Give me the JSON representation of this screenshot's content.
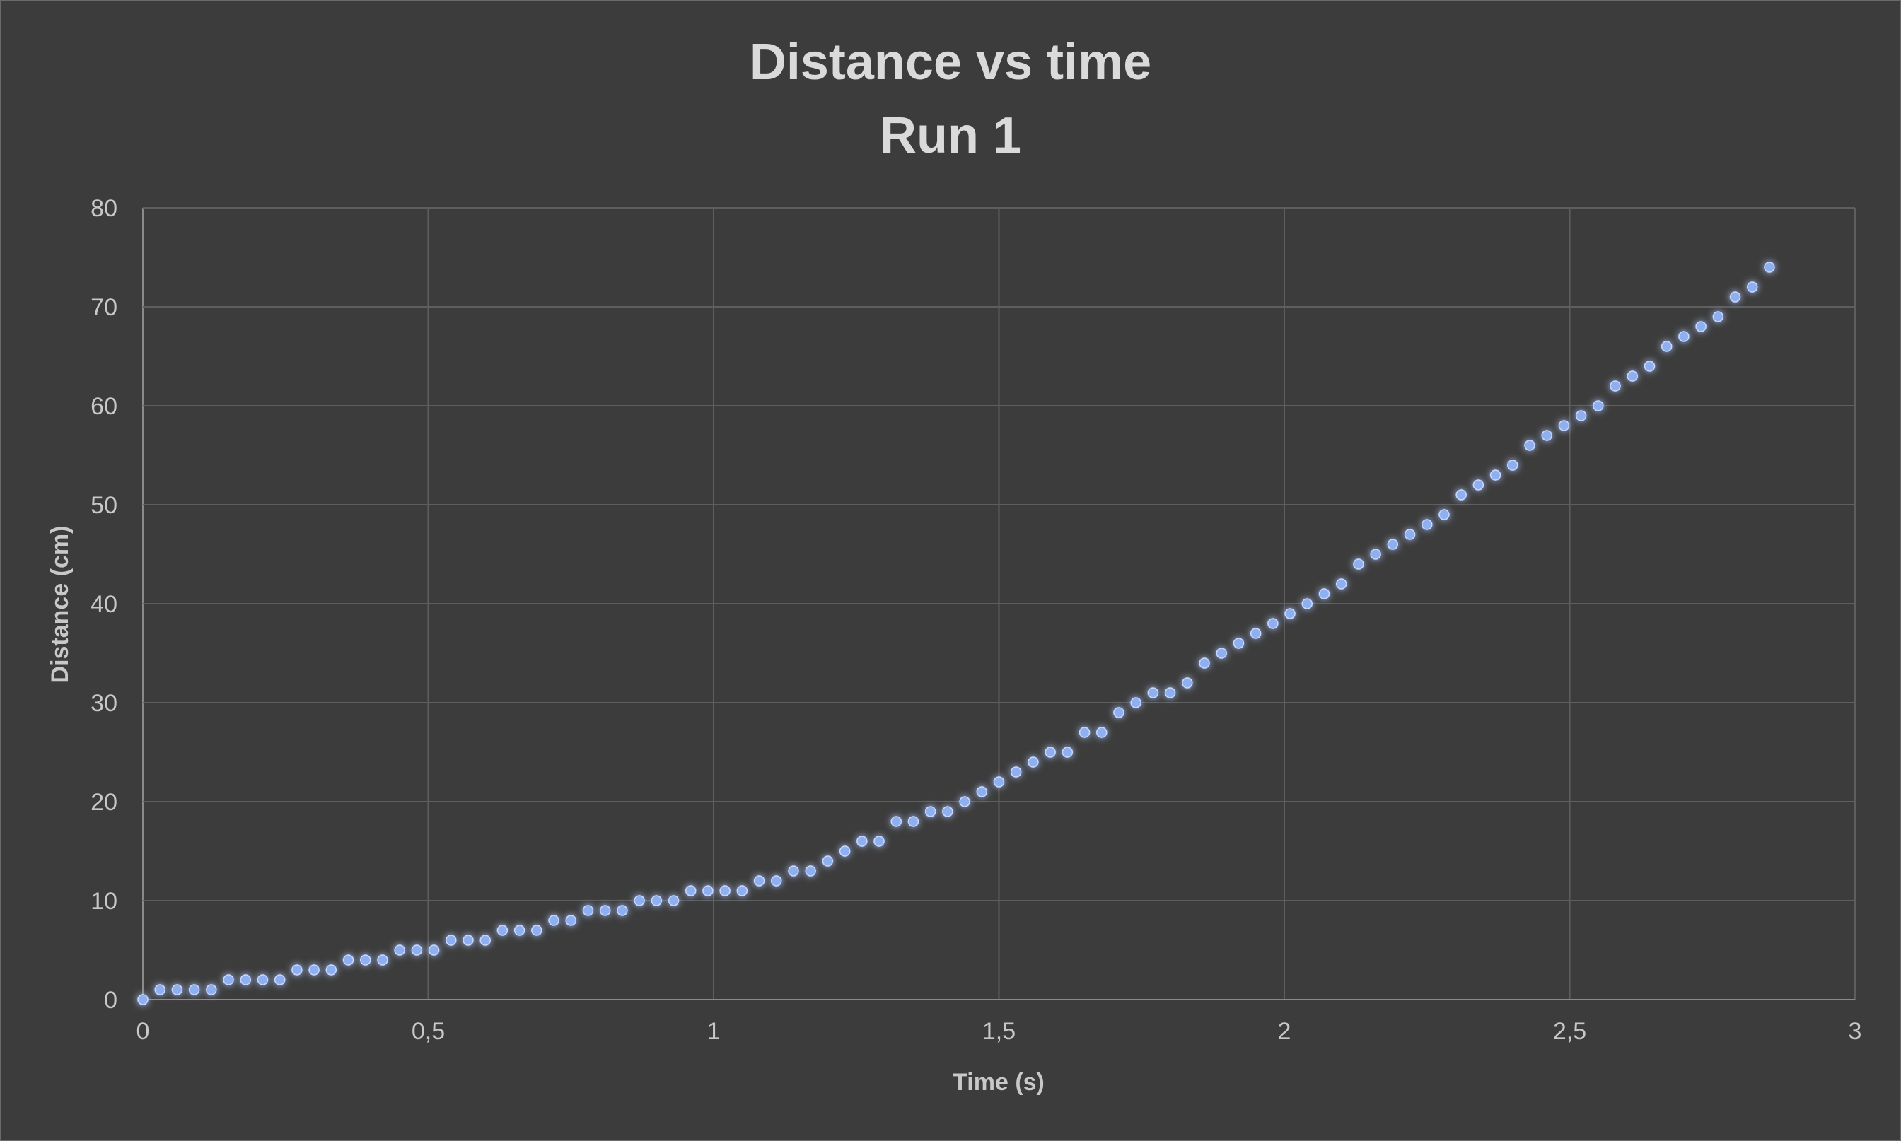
{
  "chart_data": {
    "type": "scatter",
    "title": "Distance vs time",
    "subtitle": "Run 1",
    "xlabel": "Time (s)",
    "ylabel": "Distance (cm)",
    "xlim": [
      0,
      3
    ],
    "ylim": [
      0,
      80
    ],
    "x_ticks": [
      "0",
      "0,5",
      "1",
      "1,5",
      "2",
      "2,5",
      "3"
    ],
    "y_ticks": [
      "0",
      "10",
      "20",
      "30",
      "40",
      "50",
      "60",
      "70",
      "80"
    ],
    "grid": true,
    "legend": "none",
    "marker_color": "#8fb0f0",
    "series": [
      {
        "x": [
          0,
          0.03,
          0.06,
          0.09,
          0.12,
          0.15,
          0.18,
          0.21,
          0.24,
          0.27,
          0.3,
          0.33,
          0.36,
          0.39,
          0.42,
          0.45,
          0.48,
          0.51,
          0.54,
          0.57,
          0.6,
          0.63,
          0.66,
          0.69,
          0.72,
          0.75,
          0.78,
          0.81,
          0.84,
          0.87,
          0.9,
          0.93,
          0.96,
          0.99,
          1.02,
          1.05,
          1.08,
          1.11,
          1.14,
          1.17,
          1.2,
          1.23,
          1.26,
          1.29,
          1.32,
          1.35,
          1.38,
          1.41,
          1.44,
          1.47,
          1.5,
          1.53,
          1.56,
          1.59,
          1.62,
          1.65,
          1.68,
          1.71,
          1.74,
          1.77,
          1.8,
          1.83,
          1.86,
          1.89,
          1.92,
          1.95,
          1.98,
          2.01,
          2.04,
          2.07,
          2.1,
          2.13,
          2.16,
          2.19,
          2.22,
          2.25,
          2.28,
          2.31,
          2.34,
          2.37,
          2.4,
          2.43,
          2.46,
          2.49,
          2.52,
          2.55,
          2.58,
          2.61,
          2.64,
          2.67,
          2.7,
          2.73,
          2.76,
          2.79,
          2.82,
          2.85
        ],
        "y": [
          0,
          1,
          1,
          1,
          1,
          2,
          2,
          2,
          2,
          3,
          3,
          3,
          4,
          4,
          4,
          5,
          5,
          5,
          6,
          6,
          6,
          7,
          7,
          7,
          8,
          8,
          9,
          9,
          9,
          10,
          10,
          10,
          11,
          11,
          11,
          11,
          12,
          12,
          13,
          13,
          14,
          15,
          16,
          16,
          18,
          18,
          19,
          19,
          20,
          21,
          22,
          23,
          24,
          25,
          25,
          27,
          27,
          29,
          30,
          31,
          31,
          32,
          34,
          35,
          36,
          37,
          38,
          39,
          40,
          41,
          42,
          44,
          45,
          46,
          47,
          48,
          49,
          51,
          52,
          53,
          54,
          56,
          57,
          58,
          59,
          60,
          62,
          63,
          64,
          66,
          67,
          68,
          69,
          71,
          72,
          74
        ]
      }
    ]
  }
}
